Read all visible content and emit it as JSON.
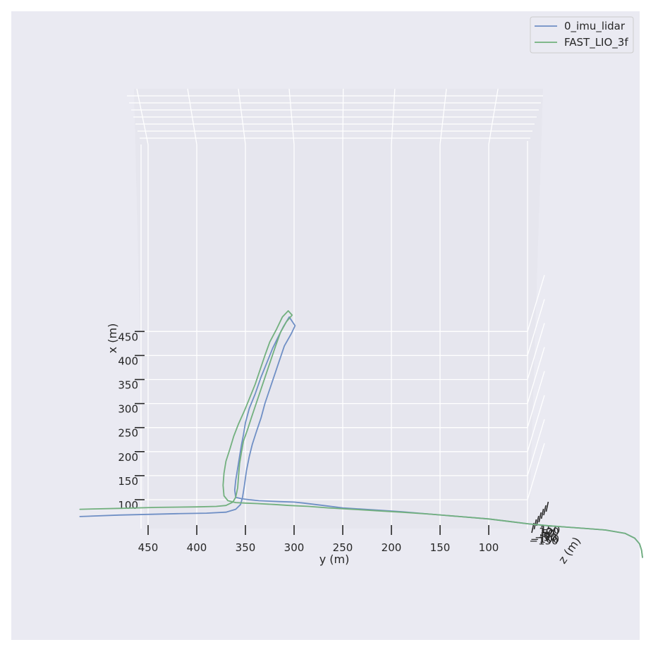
{
  "chart_data": {
    "type": "line",
    "projection": "3d",
    "xlabel": "y (m)",
    "ylabel": "x (m)",
    "zlabel": "z (m)",
    "x_ticks": [
      450,
      400,
      350,
      300,
      250,
      200,
      150,
      100
    ],
    "y_ticks": [
      450,
      400,
      350,
      300,
      250,
      200,
      150,
      100
    ],
    "z_ticks": [
      "150",
      "100",
      "50",
      "0",
      "−50",
      "−100",
      "−150"
    ],
    "z_ticks_note": "overlapping labels near the z axis",
    "legend_position": "top-right",
    "grid": true,
    "colors": {
      "background": "#eaeaf2",
      "figure": "#ffffff",
      "grid": "#ffffff"
    },
    "series": [
      {
        "name": "0_imu_lidar",
        "color": "#6f8fc5",
        "points": [
          [
            520,
            65
          ],
          [
            480,
            68
          ],
          [
            420,
            71
          ],
          [
            390,
            72
          ],
          [
            370,
            74
          ],
          [
            360,
            80
          ],
          [
            355,
            90
          ],
          [
            353,
            105
          ],
          [
            351,
            130
          ],
          [
            349,
            160
          ],
          [
            346,
            190
          ],
          [
            343,
            215
          ],
          [
            339,
            240
          ],
          [
            334,
            270
          ],
          [
            330,
            300
          ],
          [
            325,
            330
          ],
          [
            320,
            360
          ],
          [
            315,
            390
          ],
          [
            310,
            420
          ],
          [
            303,
            445
          ],
          [
            299,
            462
          ],
          [
            305,
            480
          ],
          [
            311,
            460
          ],
          [
            316,
            440
          ],
          [
            322,
            415
          ],
          [
            328,
            385
          ],
          [
            334,
            355
          ],
          [
            340,
            320
          ],
          [
            346,
            290
          ],
          [
            350,
            260
          ],
          [
            352,
            235
          ],
          [
            354,
            215
          ],
          [
            356,
            190
          ],
          [
            358,
            165
          ],
          [
            360,
            140
          ],
          [
            361,
            120
          ],
          [
            360,
            105
          ],
          [
            354,
            102
          ],
          [
            346,
            100
          ],
          [
            336,
            98
          ],
          [
            326,
            97
          ],
          [
            315,
            96
          ],
          [
            300,
            95
          ],
          [
            290,
            93
          ],
          [
            270,
            88
          ],
          [
            250,
            83
          ],
          [
            220,
            79
          ],
          [
            190,
            75
          ],
          [
            160,
            70
          ],
          [
            130,
            65
          ],
          [
            100,
            60
          ],
          [
            80,
            55
          ],
          [
            60,
            50
          ],
          [
            40,
            46
          ],
          [
            20,
            43
          ],
          [
            0,
            40
          ],
          [
            -20,
            37
          ],
          [
            -40,
            30
          ],
          [
            -50,
            20
          ],
          [
            -55,
            8
          ],
          [
            -57,
            -5
          ],
          [
            -58,
            -20
          ]
        ]
      },
      {
        "name": "FAST_LIO_3f",
        "color": "#72b07e",
        "points": [
          [
            520,
            80
          ],
          [
            480,
            82
          ],
          [
            440,
            84
          ],
          [
            400,
            85
          ],
          [
            380,
            86
          ],
          [
            370,
            88
          ],
          [
            363,
            95
          ],
          [
            360,
            105
          ],
          [
            358,
            125
          ],
          [
            357,
            150
          ],
          [
            356,
            175
          ],
          [
            354,
            200
          ],
          [
            352,
            222
          ],
          [
            348,
            245
          ],
          [
            344,
            270
          ],
          [
            339,
            300
          ],
          [
            334,
            330
          ],
          [
            329,
            360
          ],
          [
            324,
            390
          ],
          [
            319,
            420
          ],
          [
            314,
            448
          ],
          [
            308,
            470
          ],
          [
            302,
            484
          ],
          [
            306,
            493
          ],
          [
            312,
            480
          ],
          [
            318,
            455
          ],
          [
            325,
            428
          ],
          [
            330,
            400
          ],
          [
            335,
            370
          ],
          [
            340,
            340
          ],
          [
            346,
            310
          ],
          [
            351,
            285
          ],
          [
            357,
            258
          ],
          [
            362,
            232
          ],
          [
            366,
            205
          ],
          [
            370,
            180
          ],
          [
            372,
            155
          ],
          [
            373,
            130
          ],
          [
            372,
            108
          ],
          [
            368,
            98
          ],
          [
            360,
            94
          ],
          [
            350,
            93
          ],
          [
            338,
            92
          ],
          [
            320,
            90
          ],
          [
            305,
            88
          ],
          [
            285,
            86
          ],
          [
            265,
            83
          ],
          [
            240,
            80
          ],
          [
            215,
            77
          ],
          [
            190,
            74
          ],
          [
            160,
            70
          ],
          [
            130,
            65
          ],
          [
            100,
            60
          ],
          [
            80,
            55
          ],
          [
            60,
            50
          ],
          [
            40,
            46
          ],
          [
            20,
            43
          ],
          [
            0,
            40
          ],
          [
            -20,
            37
          ],
          [
            -40,
            30
          ],
          [
            -50,
            20
          ],
          [
            -55,
            8
          ],
          [
            -57,
            -5
          ],
          [
            -58,
            -20
          ]
        ]
      }
    ]
  }
}
